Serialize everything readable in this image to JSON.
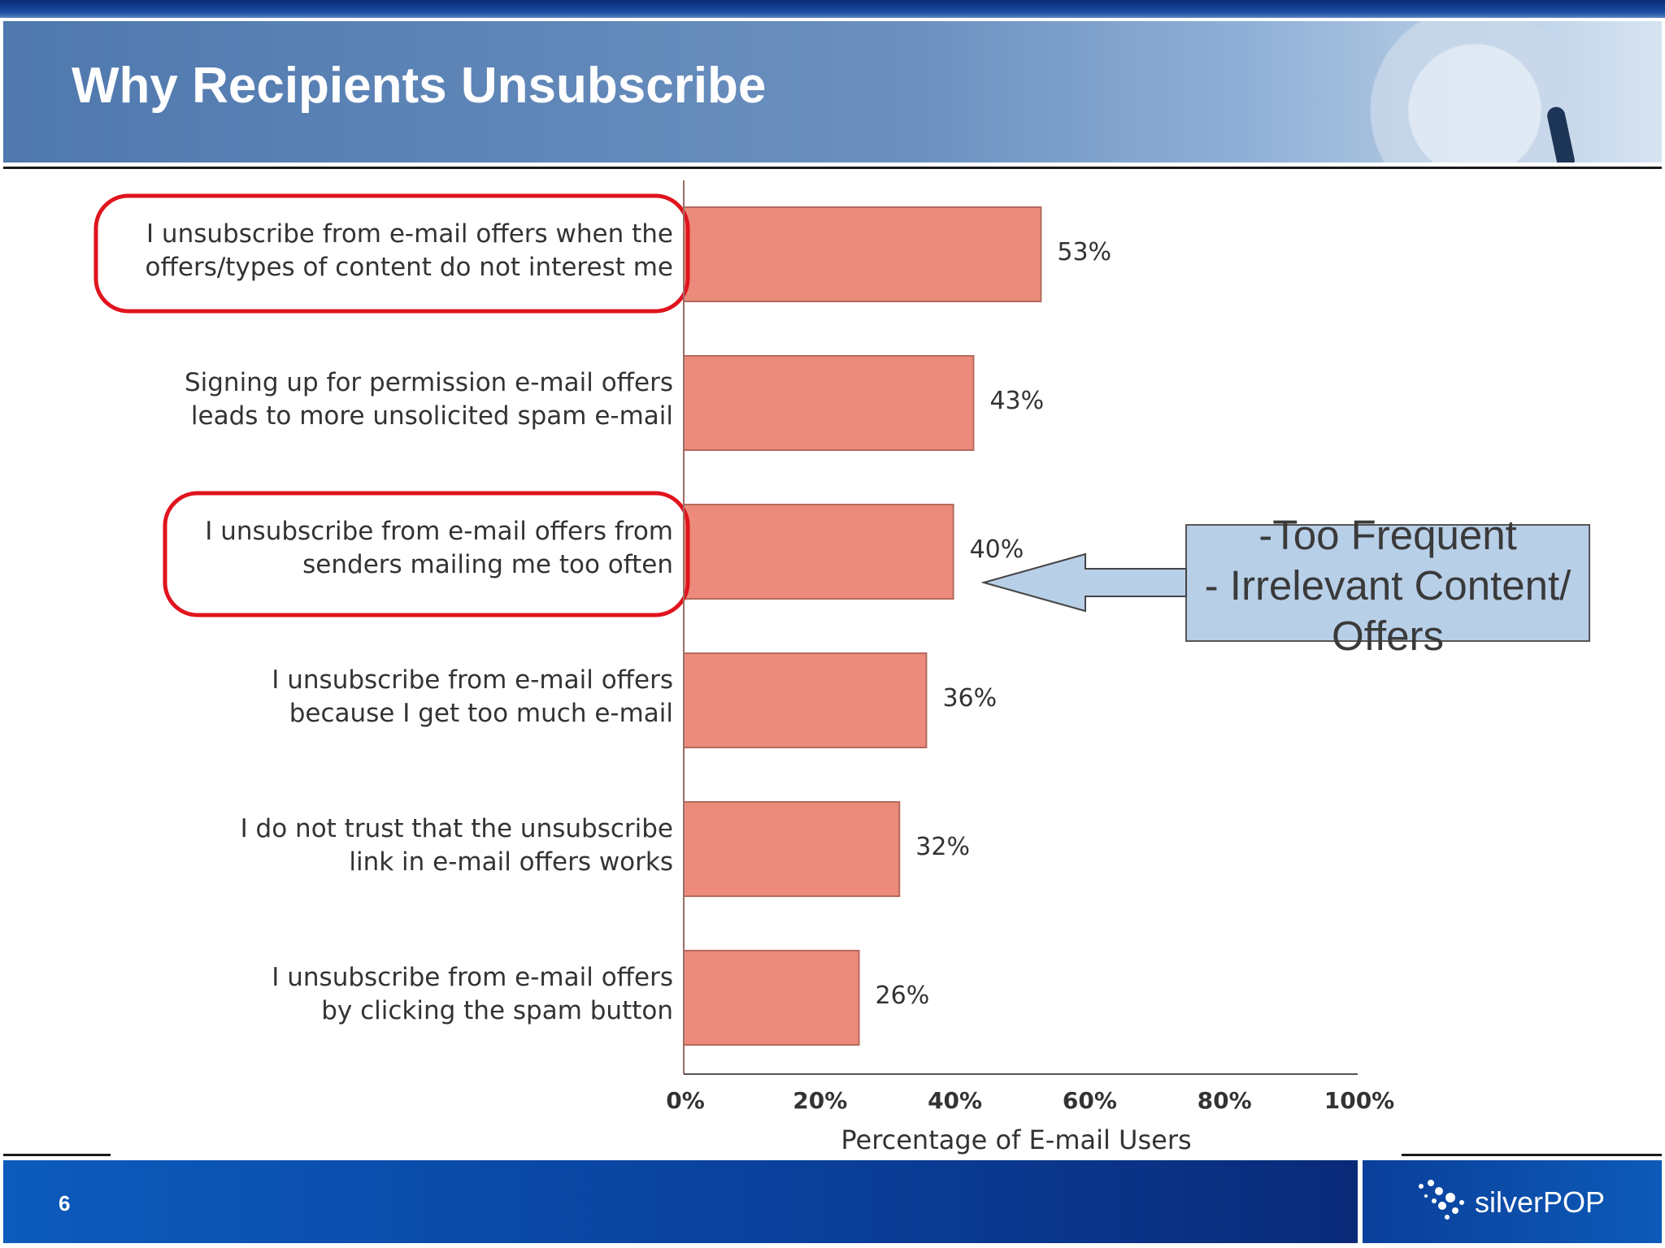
{
  "slide": {
    "title": "Why Recipients Unsubscribe",
    "page_number": "6",
    "logo_text": "silverPOP"
  },
  "callout": {
    "lines": [
      "-Too Frequent",
      "- Irrelevant Content/",
      "Offers"
    ],
    "fill_color": "#b8cfe8"
  },
  "chart_data": {
    "type": "bar",
    "orientation": "horizontal",
    "categories": [
      [
        "I unsubscribe from e-mail offers when the",
        "offers/types of content do not interest me"
      ],
      [
        "Signing up for permission e-mail offers",
        "leads to more unsolicited spam e-mail"
      ],
      [
        "I unsubscribe from e-mail offers from",
        "senders mailing me too often"
      ],
      [
        "I unsubscribe from e-mail offers",
        "because I get too much e-mail"
      ],
      [
        "I do not trust that the unsubscribe",
        "link in e-mail offers works"
      ],
      [
        "I unsubscribe from e-mail offers",
        "by clicking the spam button"
      ]
    ],
    "values": [
      53,
      43,
      40,
      36,
      32,
      26
    ],
    "value_labels": [
      "53%",
      "43%",
      "40%",
      "36%",
      "32%",
      "26%"
    ],
    "highlighted": [
      true,
      false,
      true,
      false,
      false,
      false
    ],
    "xlabel": "Percentage of E-mail Users",
    "xlim": [
      0,
      100
    ],
    "ticks": [
      "0%",
      "20%",
      "40%",
      "60%",
      "80%",
      "100%"
    ],
    "grid": false,
    "bar_color": "#ec8b7b",
    "bar_border_color": "#b46a5d",
    "highlight_color": "#e0141e"
  }
}
